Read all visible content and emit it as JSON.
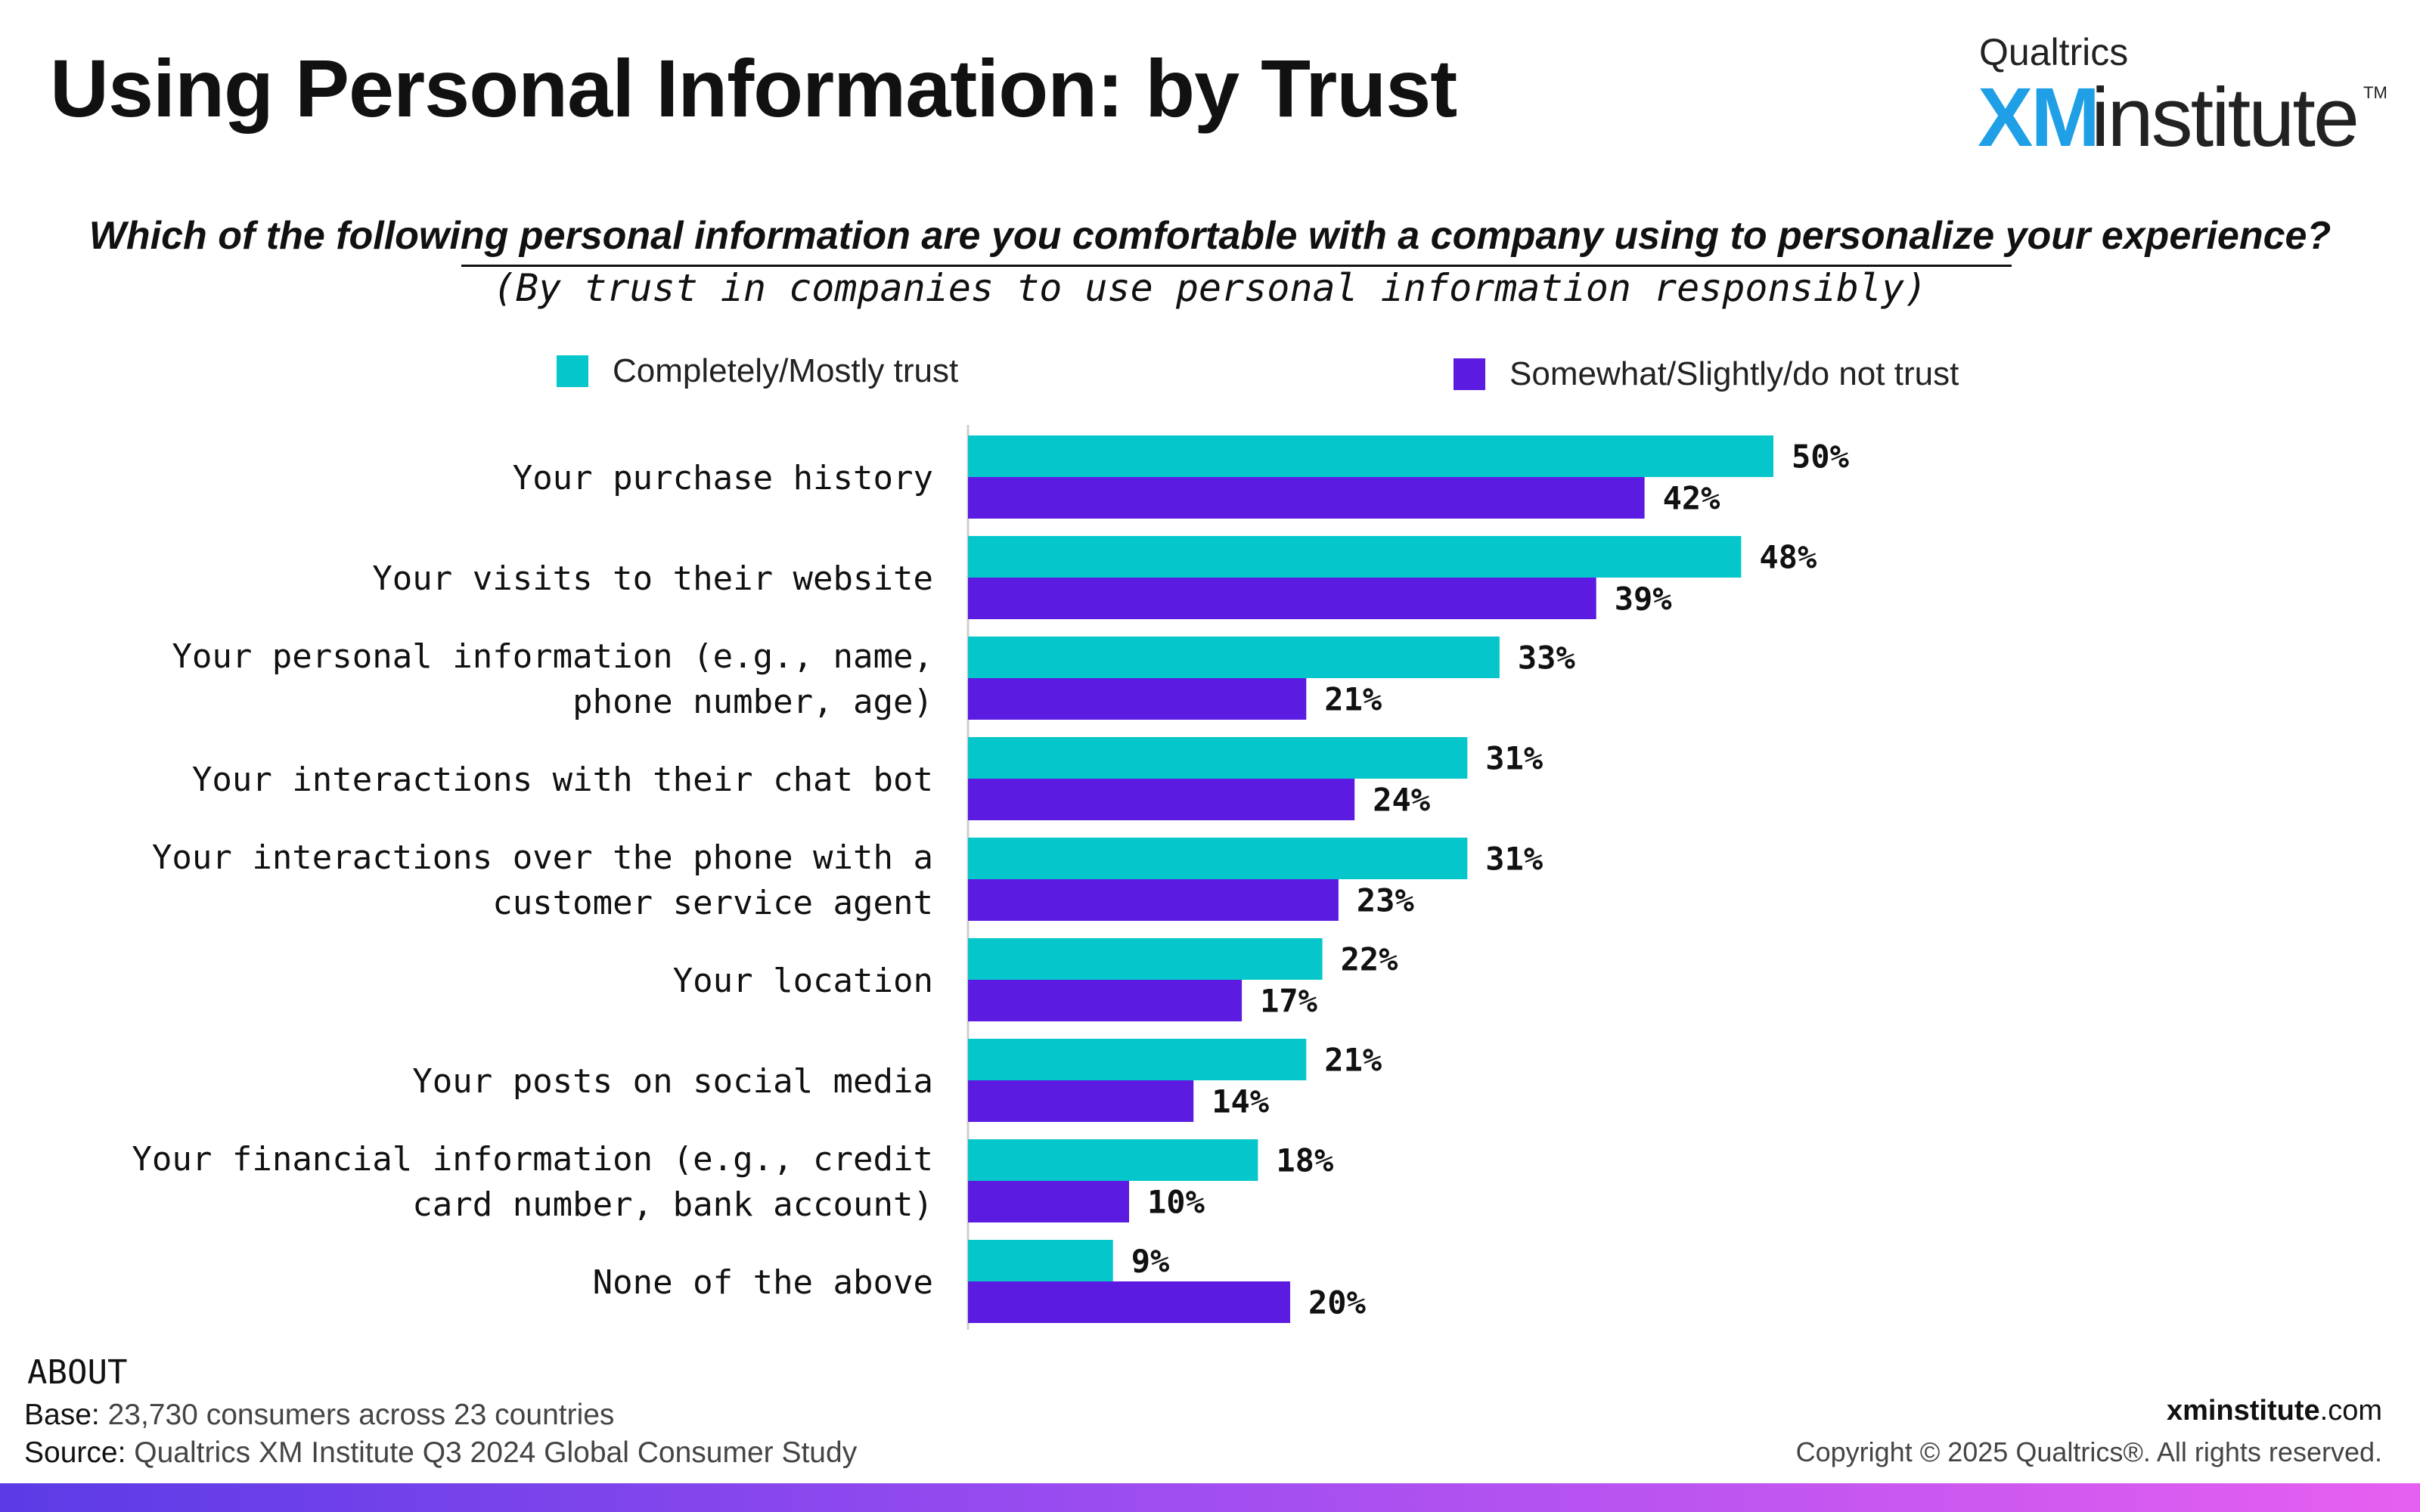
{
  "header": {
    "title": "Using Personal Information: by Trust",
    "logo_top": "Qualtrics",
    "logo_xm": "XM",
    "logo_institute": "institute",
    "logo_tm": "TM"
  },
  "question": "Which of the following personal information are you comfortable with a company using to personalize your experience?",
  "subquestion": "(By trust in companies to use personal information responsibly)",
  "chart_data": {
    "type": "bar",
    "orientation": "horizontal",
    "categories": [
      "Your purchase history",
      "Your visits to their website",
      "Your personal information (e.g., name, phone number, age)",
      "Your interactions with their chat bot",
      "Your interactions over the phone with a customer service agent",
      "Your location",
      "Your posts on social media",
      "Your financial information (e.g., credit card number, bank account)",
      "None of the above"
    ],
    "category_lines": [
      [
        "Your purchase history"
      ],
      [
        "Your visits to their website"
      ],
      [
        "Your personal information (e.g., name,",
        "phone number, age)"
      ],
      [
        "Your interactions with their chat bot"
      ],
      [
        "Your interactions over the phone with a",
        "customer service agent"
      ],
      [
        "Your location"
      ],
      [
        "Your posts on social media"
      ],
      [
        "Your financial information (e.g., credit",
        "card number, bank account)"
      ],
      [
        "None of the above"
      ]
    ],
    "series": [
      {
        "name": "Completely/Mostly trust",
        "color": "#05c7cb",
        "values": [
          50,
          48,
          33,
          31,
          31,
          22,
          21,
          18,
          9
        ]
      },
      {
        "name": "Somewhat/Slightly/do not trust",
        "color": "#5b1be0",
        "values": [
          42,
          39,
          21,
          24,
          23,
          17,
          14,
          10,
          20
        ]
      }
    ],
    "value_suffix": "%",
    "xlim": [
      0,
      100
    ],
    "grid": false,
    "legend_position": "top"
  },
  "footer": {
    "about_heading": "ABOUT",
    "base_label": "Base:",
    "base_text": "23,730 consumers across 23 countries",
    "source_label": "Source:",
    "source_text": "Qualtrics XM Institute Q3 2024 Global Consumer Study",
    "site_bold": "xminstitute",
    "site_rest": ".com",
    "copyright": "Copyright © 2025 Qualtrics®. All rights reserved."
  }
}
